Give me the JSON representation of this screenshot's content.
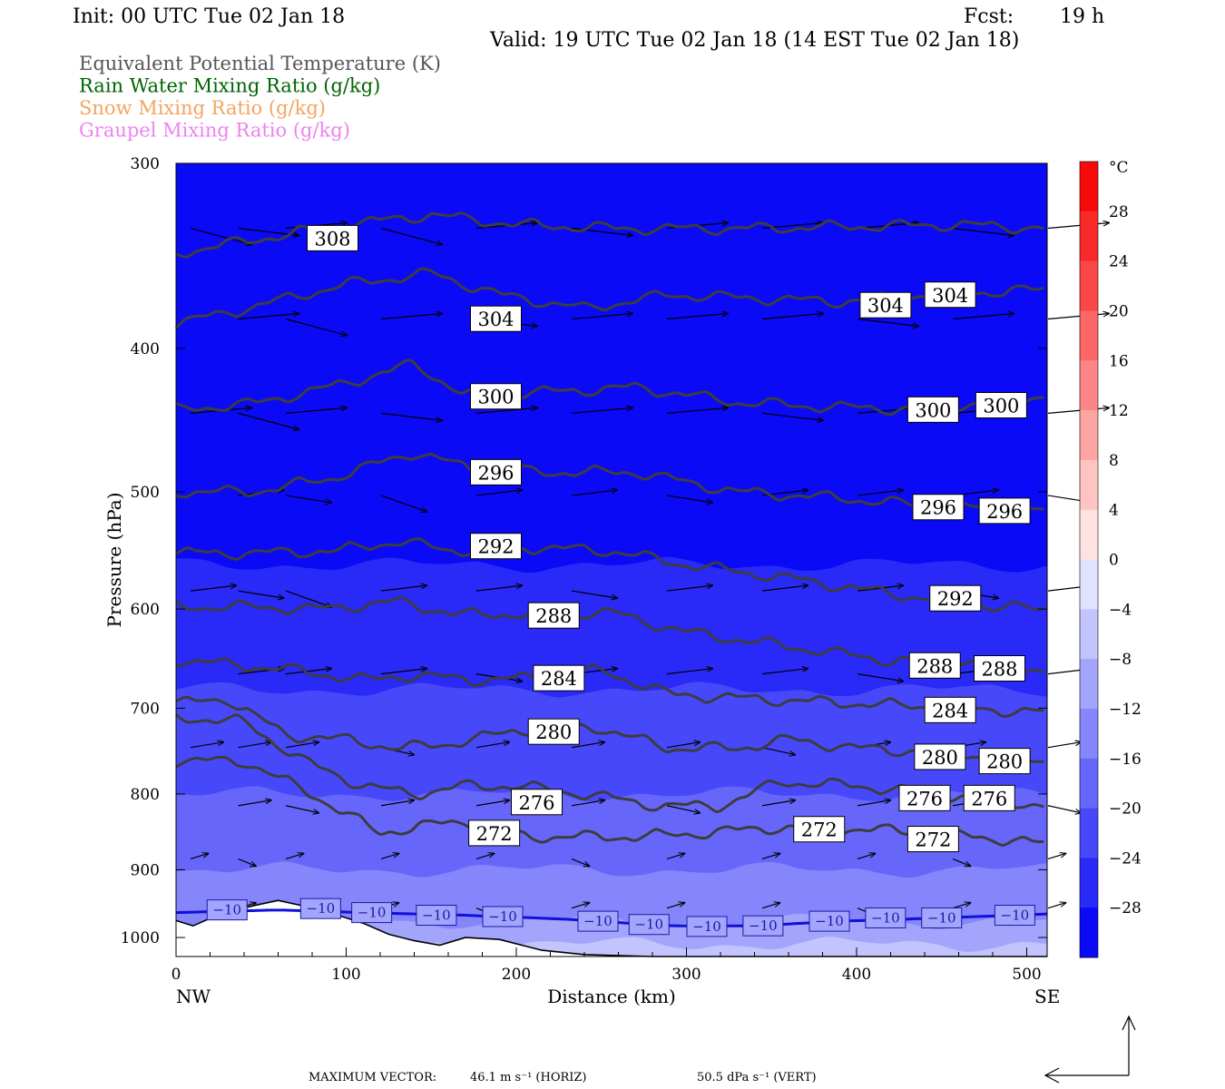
{
  "header": {
    "init": "Init: 00 UTC Tue 02 Jan 18",
    "fcst_label": "Fcst:",
    "fcst_value": "19 h",
    "valid": "Valid: 19 UTC Tue 02 Jan 18 (14 EST Tue 02 Jan 18)"
  },
  "legend": [
    {
      "label": "Equivalent Potential Temperature (K)",
      "color": "#555555"
    },
    {
      "label": "Rain Water Mixing Ratio (g/kg)",
      "color": "#006400"
    },
    {
      "label": "Snow Mixing Ratio (g/kg)",
      "color": "#f4a460"
    },
    {
      "label": "Graupel Mixing Ratio (g/kg)",
      "color": "#ee82ee"
    }
  ],
  "colorbar": {
    "unit": "°C",
    "labels": [
      "28",
      "24",
      "20",
      "16",
      "12",
      "8",
      "4",
      "0",
      "−4",
      "−8",
      "−12",
      "−16",
      "−20",
      "−24",
      "−28"
    ]
  },
  "footer": {
    "max_vector": "MAXIMUM VECTOR:",
    "horiz": "46.1 m s⁻¹ (HORIZ)",
    "vert": "50.5 dPa s⁻¹ (VERT)"
  },
  "chart_data": {
    "type": "contour",
    "xlabel": "Distance (km)",
    "ylabel": "Pressure (hPa)",
    "xlim": [
      0,
      512
    ],
    "ylim": [
      1030,
      300
    ],
    "y_scale": "log",
    "x_ticks": [
      0,
      100,
      200,
      300,
      400,
      500
    ],
    "y_ticks": [
      300,
      400,
      500,
      600,
      700,
      800,
      900,
      1000
    ],
    "x_end_labels": {
      "left": "NW",
      "right": "SE"
    },
    "filled_field": "Temperature (°C)",
    "filled_range": [
      -32,
      32
    ],
    "filled_interval": 4,
    "theta_e_contours": [
      {
        "level": 272,
        "labels": [
          {
            "x": 187,
            "p": 850
          },
          {
            "x": 378,
            "p": 845
          },
          {
            "x": 445,
            "p": 858
          }
        ],
        "points": [
          [
            0,
            760
          ],
          [
            40,
            760
          ],
          [
            80,
            800
          ],
          [
            120,
            850
          ],
          [
            145,
            840
          ],
          [
            175,
            835
          ],
          [
            205,
            855
          ],
          [
            240,
            855
          ],
          [
            270,
            855
          ],
          [
            310,
            850
          ],
          [
            350,
            843
          ],
          [
            400,
            845
          ],
          [
            450,
            850
          ],
          [
            512,
            865
          ]
        ]
      },
      {
        "level": 276,
        "labels": [
          {
            "x": 212,
            "p": 810
          },
          {
            "x": 440,
            "p": 805
          },
          {
            "x": 478,
            "p": 805
          }
        ],
        "points": [
          [
            0,
            710
          ],
          [
            40,
            715
          ],
          [
            75,
            760
          ],
          [
            110,
            790
          ],
          [
            140,
            800
          ],
          [
            170,
            790
          ],
          [
            200,
            790
          ],
          [
            240,
            800
          ],
          [
            285,
            815
          ],
          [
            320,
            815
          ],
          [
            355,
            785
          ],
          [
            400,
            790
          ],
          [
            450,
            800
          ],
          [
            512,
            815
          ]
        ]
      },
      {
        "level": 280,
        "labels": [
          {
            "x": 222,
            "p": 726
          },
          {
            "x": 449,
            "p": 755
          },
          {
            "x": 487,
            "p": 760
          }
        ],
        "points": [
          [
            0,
            695
          ],
          [
            30,
            690
          ],
          [
            65,
            730
          ],
          [
            100,
            735
          ],
          [
            130,
            745
          ],
          [
            160,
            740
          ],
          [
            200,
            725
          ],
          [
            245,
            720
          ],
          [
            290,
            745
          ],
          [
            330,
            745
          ],
          [
            360,
            735
          ],
          [
            400,
            745
          ],
          [
            450,
            750
          ],
          [
            512,
            760
          ]
        ]
      },
      {
        "level": 284,
        "labels": [
          {
            "x": 225,
            "p": 668
          },
          {
            "x": 455,
            "p": 702
          }
        ],
        "points": [
          [
            0,
            650
          ],
          [
            40,
            655
          ],
          [
            70,
            660
          ],
          [
            110,
            670
          ],
          [
            140,
            665
          ],
          [
            175,
            670
          ],
          [
            210,
            668
          ],
          [
            250,
            660
          ],
          [
            290,
            685
          ],
          [
            340,
            690
          ],
          [
            400,
            695
          ],
          [
            460,
            700
          ],
          [
            512,
            705
          ]
        ]
      },
      {
        "level": 288,
        "labels": [
          {
            "x": 222,
            "p": 606
          },
          {
            "x": 446,
            "p": 655
          },
          {
            "x": 484,
            "p": 658
          }
        ],
        "points": [
          [
            0,
            598
          ],
          [
            40,
            598
          ],
          [
            85,
            600
          ],
          [
            130,
            593
          ],
          [
            165,
            605
          ],
          [
            205,
            605
          ],
          [
            255,
            603
          ],
          [
            300,
            622
          ],
          [
            360,
            636
          ],
          [
            420,
            650
          ],
          [
            470,
            652
          ],
          [
            512,
            660
          ]
        ]
      },
      {
        "level": 292,
        "labels": [
          {
            "x": 188,
            "p": 544
          },
          {
            "x": 458,
            "p": 590
          }
        ],
        "points": [
          [
            0,
            550
          ],
          [
            45,
            550
          ],
          [
            95,
            548
          ],
          [
            130,
            540
          ],
          [
            165,
            548
          ],
          [
            205,
            545
          ],
          [
            255,
            548
          ],
          [
            300,
            560
          ],
          [
            360,
            572
          ],
          [
            430,
            588
          ],
          [
            480,
            598
          ],
          [
            512,
            600
          ]
        ]
      },
      {
        "level": 296,
        "labels": [
          {
            "x": 188,
            "p": 485
          },
          {
            "x": 448,
            "p": 512
          },
          {
            "x": 487,
            "p": 515
          }
        ],
        "points": [
          [
            0,
            500
          ],
          [
            45,
            500
          ],
          [
            90,
            490
          ],
          [
            140,
            470
          ],
          [
            175,
            483
          ],
          [
            220,
            485
          ],
          [
            270,
            485
          ],
          [
            330,
            500
          ],
          [
            390,
            505
          ],
          [
            450,
            512
          ],
          [
            512,
            515
          ]
        ]
      },
      {
        "level": 300,
        "labels": [
          {
            "x": 188,
            "p": 431
          },
          {
            "x": 445,
            "p": 440
          },
          {
            "x": 485,
            "p": 437
          }
        ],
        "points": [
          [
            0,
            440
          ],
          [
            45,
            436
          ],
          [
            90,
            425
          ],
          [
            140,
            410
          ],
          [
            170,
            430
          ],
          [
            220,
            428
          ],
          [
            270,
            425
          ],
          [
            330,
            435
          ],
          [
            380,
            438
          ],
          [
            440,
            440
          ],
          [
            512,
            430
          ]
        ]
      },
      {
        "level": 304,
        "labels": [
          {
            "x": 188,
            "p": 382
          },
          {
            "x": 417,
            "p": 374
          },
          {
            "x": 455,
            "p": 368
          }
        ],
        "points": [
          [
            0,
            385
          ],
          [
            45,
            375
          ],
          [
            100,
            362
          ],
          [
            150,
            356
          ],
          [
            190,
            368
          ],
          [
            240,
            376
          ],
          [
            290,
            368
          ],
          [
            340,
            370
          ],
          [
            390,
            372
          ],
          [
            440,
            368
          ],
          [
            512,
            365
          ]
        ]
      },
      {
        "level": 308,
        "labels": [
          {
            "x": 92,
            "p": 337
          }
        ],
        "points": [
          [
            0,
            345
          ],
          [
            45,
            338
          ],
          [
            100,
            330
          ],
          [
            150,
            325
          ],
          [
            200,
            330
          ],
          [
            260,
            332
          ],
          [
            330,
            332
          ],
          [
            400,
            331
          ],
          [
            460,
            330
          ],
          [
            512,
            332
          ]
        ]
      }
    ],
    "isotherm_minus10": {
      "level": -10,
      "labels": [
        {
          "x": 30,
          "p": 958
        },
        {
          "x": 85,
          "p": 956
        },
        {
          "x": 115,
          "p": 962
        },
        {
          "x": 153,
          "p": 966
        },
        {
          "x": 192,
          "p": 968
        },
        {
          "x": 248,
          "p": 975
        },
        {
          "x": 278,
          "p": 980
        },
        {
          "x": 312,
          "p": 983
        },
        {
          "x": 345,
          "p": 982
        },
        {
          "x": 384,
          "p": 975
        },
        {
          "x": 417,
          "p": 970
        },
        {
          "x": 450,
          "p": 970
        },
        {
          "x": 493,
          "p": 966
        }
      ],
      "points": [
        [
          0,
          962
        ],
        [
          60,
          958
        ],
        [
          110,
          962
        ],
        [
          170,
          966
        ],
        [
          230,
          972
        ],
        [
          290,
          982
        ],
        [
          340,
          982
        ],
        [
          390,
          975
        ],
        [
          450,
          970
        ],
        [
          512,
          964
        ]
      ]
    },
    "terrain_surface_points": [
      [
        0,
        974
      ],
      [
        10,
        982
      ],
      [
        25,
        965
      ],
      [
        45,
        952
      ],
      [
        60,
        944
      ],
      [
        80,
        955
      ],
      [
        95,
        966
      ],
      [
        110,
        978
      ],
      [
        125,
        995
      ],
      [
        140,
        1005
      ],
      [
        155,
        1012
      ],
      [
        170,
        1000
      ],
      [
        190,
        1003
      ],
      [
        215,
        1020
      ],
      [
        240,
        1027
      ],
      [
        280,
        1030
      ],
      [
        512,
        1030
      ]
    ]
  }
}
